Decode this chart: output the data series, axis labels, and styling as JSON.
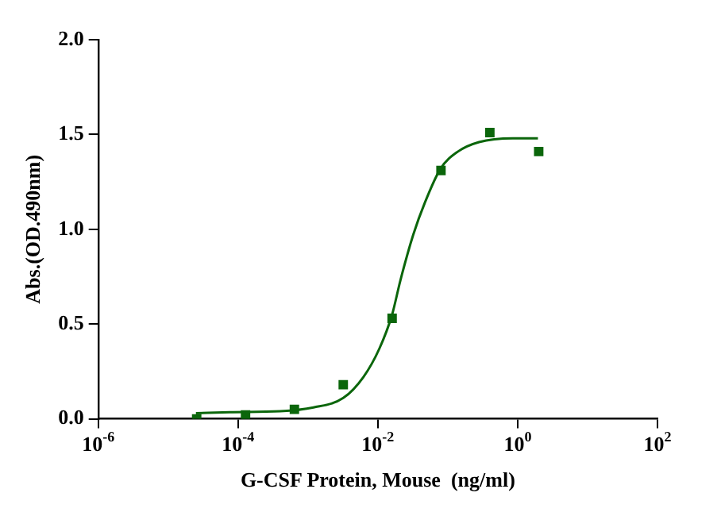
{
  "chart_data": {
    "type": "scatter",
    "xlabel": "G-CSF Protein, Mouse  (ng/ml)",
    "ylabel": "Abs.(OD.490nm)",
    "log": "x",
    "xlim": [
      1e-06,
      100
    ],
    "xticks": [
      {
        "value": 1e-06,
        "label": "10$^{-6}$"
      },
      {
        "value": 0.0001,
        "label": "10$^{-4}$"
      },
      {
        "value": 0.01,
        "label": "10$^{-2}$"
      },
      {
        "value": 1,
        "label": "10$^{0}$"
      },
      {
        "value": 100,
        "label": "10$^{2}$"
      }
    ],
    "ylim": [
      0,
      2
    ],
    "yticks": [
      {
        "value": 0,
        "label": "0.0"
      },
      {
        "value": 0.5,
        "label": "0.5"
      },
      {
        "value": 1,
        "label": "1.0"
      },
      {
        "value": 1.5,
        "label": "1.5"
      },
      {
        "value": 2,
        "label": "2.0"
      }
    ],
    "grid": false,
    "legend": false,
    "series": [
      {
        "color": "#0b660b",
        "marker": "square",
        "x": [
          2.56e-05,
          0.000128,
          0.00064,
          0.0032,
          0.016,
          0.08,
          0.4,
          2
        ],
        "values": [
          0.0,
          0.02,
          0.05,
          0.18,
          0.53,
          1.31,
          1.51,
          1.41
        ]
      },
      {
        "type": "line",
        "color": "#0b660b",
        "marker": "none",
        "line_style": "solid",
        "x": [
          2.5e-05,
          7.6e-05,
          0.0004,
          0.0012,
          0.0032,
          0.0062,
          0.0105,
          0.016,
          0.021,
          0.032,
          0.047,
          0.079,
          0.14,
          0.28,
          0.85,
          1.95
        ],
        "values": [
          0.03,
          0.035,
          0.04,
          0.06,
          0.11,
          0.22,
          0.37,
          0.55,
          0.73,
          0.97,
          1.14,
          1.32,
          1.41,
          1.46,
          1.48,
          1.48
        ]
      }
    ]
  }
}
